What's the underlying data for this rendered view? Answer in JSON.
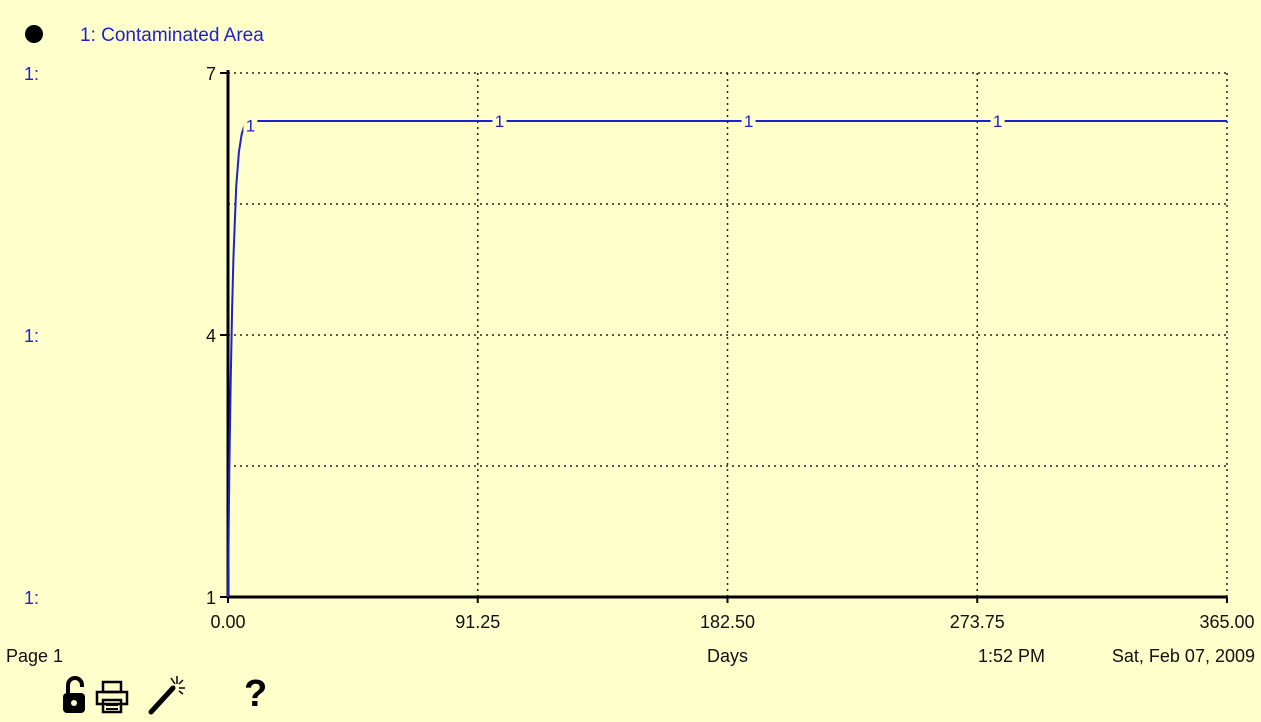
{
  "legend": {
    "series_label": "1: Contaminated Area",
    "color": "#1f1fd0"
  },
  "footer": {
    "page_label": "Page 1",
    "time": "1:52 PM",
    "date": "Sat, Feb 07, 2009"
  },
  "toolbar": {
    "lock_icon": "padlock-open-icon",
    "print_icon": "printer-icon",
    "wand_icon": "magic-wand-icon",
    "help_label": "?"
  },
  "axis_series_prefix": "1:",
  "chart_data": {
    "type": "line",
    "title": "",
    "xlabel": "Days",
    "ylabel": "",
    "xlim": [
      0,
      365
    ],
    "ylim": [
      1,
      7
    ],
    "x_ticks": [
      "0.00",
      "91.25",
      "182.50",
      "273.75",
      "365.00"
    ],
    "y_ticks": [
      "1",
      "4",
      "7"
    ],
    "grid": true,
    "grid_style": "dotted",
    "series": [
      {
        "name": "1: Contaminated Area",
        "marker_label": "1",
        "marker_x": [
          6,
          97,
          188,
          279
        ],
        "color": "#1f1fd0",
        "x": [
          0,
          0.5,
          1.0,
          1.5,
          2.0,
          2.5,
          3.0,
          3.5,
          4.0,
          4.5,
          5.0,
          6.0,
          8.0,
          20,
          91.25,
          182.5,
          273.75,
          365
        ],
        "y": [
          1.0,
          2.5,
          3.5,
          4.3,
          4.9,
          5.3,
          5.7,
          5.9,
          6.1,
          6.2,
          6.3,
          6.4,
          6.45,
          6.45,
          6.45,
          6.45,
          6.45,
          6.45
        ]
      }
    ]
  }
}
